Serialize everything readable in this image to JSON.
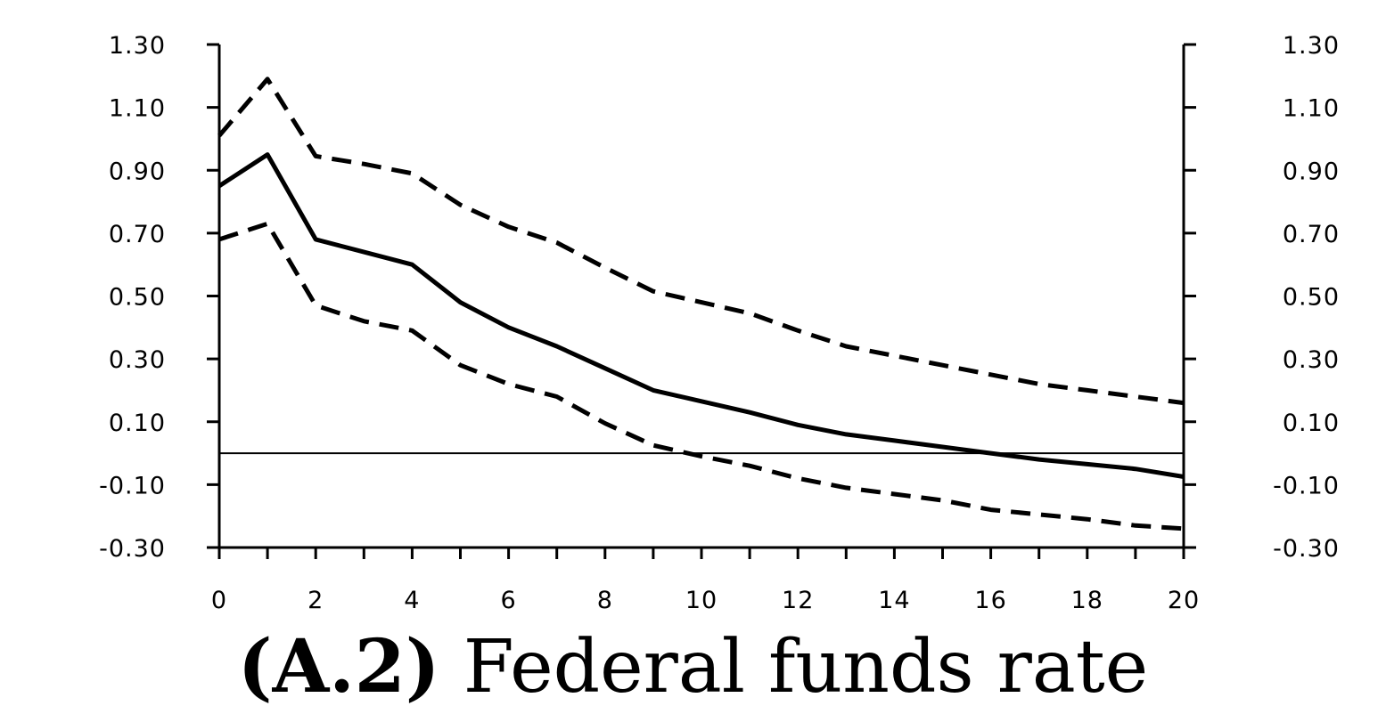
{
  "caption": {
    "panel": "(A.2)",
    "title": "Federal funds rate"
  },
  "chart_data": {
    "type": "line",
    "title": "(A.2) Federal funds rate",
    "xlabel": "",
    "ylabel": "",
    "xlim": [
      0,
      20
    ],
    "ylim": [
      -0.3,
      1.3
    ],
    "x_ticks": [
      "0",
      "2",
      "4",
      "6",
      "8",
      "10",
      "12",
      "14",
      "16",
      "18",
      "20"
    ],
    "y_ticks": [
      "1.30",
      "1.10",
      "0.90",
      "0.70",
      "0.50",
      "0.30",
      "0.10",
      "-0.10",
      "-0.30"
    ],
    "y_tick_values": [
      1.3,
      1.1,
      0.9,
      0.7,
      0.5,
      0.3,
      0.1,
      -0.1,
      -0.3
    ],
    "right_axis_mirrored": true,
    "zero_line": true,
    "grid": false,
    "x": [
      0,
      1,
      2,
      3,
      4,
      5,
      6,
      7,
      8,
      9,
      10,
      11,
      12,
      13,
      14,
      15,
      16,
      17,
      18,
      19,
      20
    ],
    "series": [
      {
        "style": "solid",
        "values": [
          0.85,
          0.95,
          0.68,
          0.64,
          0.6,
          0.48,
          0.4,
          0.34,
          0.27,
          0.2,
          0.165,
          0.13,
          0.09,
          0.06,
          0.04,
          0.02,
          0.0,
          -0.02,
          -0.035,
          -0.05,
          -0.075
        ]
      },
      {
        "style": "dashed",
        "values": [
          1.01,
          1.19,
          0.945,
          0.92,
          0.89,
          0.79,
          0.72,
          0.67,
          0.59,
          0.515,
          0.48,
          0.445,
          0.39,
          0.34,
          0.31,
          0.28,
          0.25,
          0.22,
          0.2,
          0.18,
          0.16
        ]
      },
      {
        "style": "dashed",
        "values": [
          0.68,
          0.73,
          0.47,
          0.42,
          0.39,
          0.28,
          0.22,
          0.18,
          0.095,
          0.025,
          -0.01,
          -0.04,
          -0.08,
          -0.11,
          -0.13,
          -0.15,
          -0.18,
          -0.195,
          -0.21,
          -0.23,
          -0.24
        ]
      }
    ]
  }
}
